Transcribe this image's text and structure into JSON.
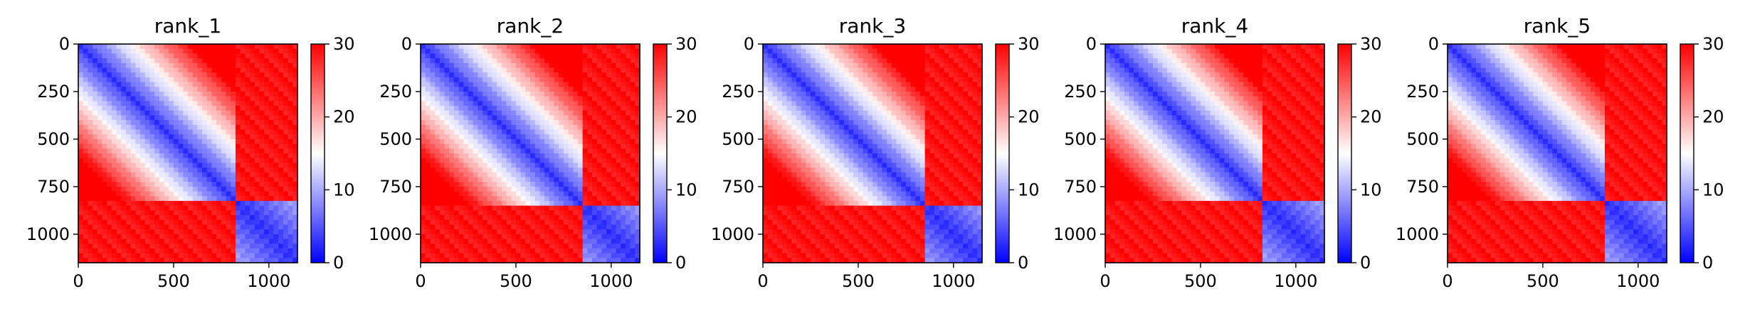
{
  "chart_data": [
    {
      "type": "heatmap",
      "title": "rank_1",
      "xlabel": "",
      "ylabel": "",
      "xlim": [
        0,
        1150
      ],
      "ylim": [
        1150,
        0
      ],
      "xticks": [
        0,
        500,
        1000
      ],
      "yticks": [
        0,
        250,
        500,
        750,
        1000
      ],
      "block_boundary": 820,
      "colorbar": {
        "min": 0,
        "max": 30,
        "ticks": [
          0,
          10,
          20,
          30
        ],
        "colormap": [
          "#0000ff",
          "#ffffff",
          "#ff0000"
        ]
      }
    },
    {
      "type": "heatmap",
      "title": "rank_2",
      "xlabel": "",
      "ylabel": "",
      "xlim": [
        0,
        1150
      ],
      "ylim": [
        1150,
        0
      ],
      "xticks": [
        0,
        500,
        1000
      ],
      "yticks": [
        0,
        250,
        500,
        750,
        1000
      ],
      "block_boundary": 840,
      "colorbar": {
        "min": 0,
        "max": 30,
        "ticks": [
          0,
          10,
          20,
          30
        ],
        "colormap": [
          "#0000ff",
          "#ffffff",
          "#ff0000"
        ]
      }
    },
    {
      "type": "heatmap",
      "title": "rank_3",
      "xlabel": "",
      "ylabel": "",
      "xlim": [
        0,
        1150
      ],
      "ylim": [
        1150,
        0
      ],
      "xticks": [
        0,
        500,
        1000
      ],
      "yticks": [
        0,
        250,
        500,
        750,
        1000
      ],
      "block_boundary": 840,
      "colorbar": {
        "min": 0,
        "max": 30,
        "ticks": [
          0,
          10,
          20,
          30
        ],
        "colormap": [
          "#0000ff",
          "#ffffff",
          "#ff0000"
        ]
      }
    },
    {
      "type": "heatmap",
      "title": "rank_4",
      "xlabel": "",
      "ylabel": "",
      "xlim": [
        0,
        1150
      ],
      "ylim": [
        1150,
        0
      ],
      "xticks": [
        0,
        500,
        1000
      ],
      "yticks": [
        0,
        250,
        500,
        750,
        1000
      ],
      "block_boundary": 830,
      "colorbar": {
        "min": 0,
        "max": 30,
        "ticks": [
          0,
          10,
          20,
          30
        ],
        "colormap": [
          "#0000ff",
          "#ffffff",
          "#ff0000"
        ]
      }
    },
    {
      "type": "heatmap",
      "title": "rank_5",
      "xlabel": "",
      "ylabel": "",
      "xlim": [
        0,
        1150
      ],
      "ylim": [
        1150,
        0
      ],
      "xticks": [
        0,
        500,
        1000
      ],
      "yticks": [
        0,
        250,
        500,
        750,
        1000
      ],
      "block_boundary": 820,
      "colorbar": {
        "min": 0,
        "max": 30,
        "ticks": [
          0,
          10,
          20,
          30
        ],
        "colormap": [
          "#0000ff",
          "#ffffff",
          "#ff0000"
        ]
      }
    }
  ]
}
